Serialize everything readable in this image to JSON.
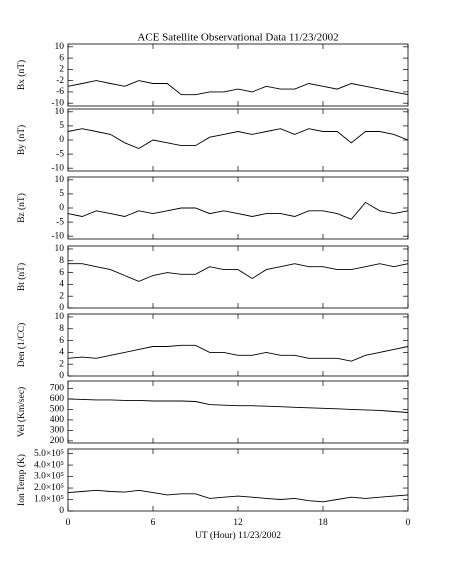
{
  "chart_data": [
    {
      "type": "line",
      "title": "ACE Satellite Observational Data   11/23/2002",
      "ylabel": "Bx (nT)",
      "x": [
        0,
        1,
        2,
        3,
        4,
        5,
        6,
        7,
        8,
        9,
        10,
        11,
        12,
        13,
        14,
        15,
        16,
        17,
        18,
        19,
        20,
        21,
        22,
        23,
        24
      ],
      "values": [
        -4,
        -3,
        -2,
        -3,
        -4,
        -2,
        -3,
        -3,
        -7,
        -7,
        -6,
        -6,
        -5,
        -6,
        -4,
        -5,
        -5,
        -3,
        -4,
        -5,
        -3,
        -4,
        -5,
        -6,
        -7
      ],
      "color": "#000000",
      "ylim": [
        -11,
        11
      ],
      "yticks": [
        10,
        6,
        2,
        -2,
        -6,
        -10
      ]
    },
    {
      "type": "line",
      "ylabel": "By (nT)",
      "x": [
        0,
        1,
        2,
        3,
        4,
        5,
        6,
        7,
        8,
        9,
        10,
        11,
        12,
        13,
        14,
        15,
        16,
        17,
        18,
        19,
        20,
        21,
        22,
        23,
        24
      ],
      "values": [
        3,
        4,
        3,
        2,
        -1,
        -3,
        0,
        -1,
        -2,
        -2,
        1,
        2,
        3,
        2,
        3,
        4,
        2,
        4,
        3,
        3,
        -1,
        3,
        3,
        2,
        0
      ],
      "color": "#000000",
      "ylim": [
        -11,
        11
      ],
      "yticks": [
        10,
        5,
        0,
        -5,
        -10
      ]
    },
    {
      "type": "line",
      "ylabel": "Bz (nT)",
      "x": [
        0,
        1,
        2,
        3,
        4,
        5,
        6,
        7,
        8,
        9,
        10,
        11,
        12,
        13,
        14,
        15,
        16,
        17,
        18,
        19,
        20,
        21,
        22,
        23,
        24
      ],
      "values": [
        -2,
        -3,
        -1,
        -2,
        -3,
        -1,
        -2,
        -1,
        0,
        0,
        -2,
        -1,
        -2,
        -3,
        -2,
        -2,
        -3,
        -1,
        -1,
        -2,
        -4,
        2,
        -1,
        -2,
        -1
      ],
      "color": "#000000",
      "ylim": [
        -11,
        11
      ],
      "yticks": [
        10,
        5,
        0,
        -5,
        -10
      ]
    },
    {
      "type": "line",
      "ylabel": "Bt (nT)",
      "x": [
        0,
        1,
        2,
        3,
        4,
        5,
        6,
        7,
        8,
        9,
        10,
        11,
        12,
        13,
        14,
        15,
        16,
        17,
        18,
        19,
        20,
        21,
        22,
        23,
        24
      ],
      "values": [
        7.5,
        7.5,
        7,
        6.5,
        5.5,
        4.5,
        5.5,
        6,
        5.7,
        5.7,
        7,
        6.5,
        6.5,
        5,
        6.5,
        7,
        7.5,
        7,
        7,
        6.5,
        6.5,
        7,
        7.5,
        7,
        7.5
      ],
      "color": "#000000",
      "ylim": [
        0,
        10.5
      ],
      "yticks": [
        10,
        8,
        6,
        4,
        2,
        0
      ]
    },
    {
      "type": "line",
      "ylabel": "Den (1/CC)",
      "x": [
        0,
        1,
        2,
        3,
        4,
        5,
        6,
        7,
        8,
        9,
        10,
        11,
        12,
        13,
        14,
        15,
        16,
        17,
        18,
        19,
        20,
        21,
        22,
        23,
        24
      ],
      "values": [
        3,
        3.2,
        3,
        3.5,
        4,
        4.5,
        5,
        5,
        5.2,
        5.2,
        4,
        4,
        3.5,
        3.5,
        4,
        3.5,
        3.5,
        3,
        3,
        3,
        2.5,
        3.5,
        4,
        4.5,
        5
      ],
      "color": "#000000",
      "ylim": [
        0,
        10.5
      ],
      "yticks": [
        10,
        8,
        6,
        4,
        2,
        0
      ]
    },
    {
      "type": "line",
      "ylabel": "Vel (Km/sec)",
      "x": [
        0,
        1,
        2,
        3,
        4,
        5,
        6,
        7,
        8,
        9,
        10,
        11,
        12,
        13,
        14,
        15,
        16,
        17,
        18,
        19,
        20,
        21,
        22,
        23,
        24
      ],
      "values": [
        600,
        595,
        590,
        590,
        585,
        585,
        580,
        580,
        580,
        575,
        545,
        540,
        535,
        535,
        530,
        525,
        520,
        515,
        510,
        505,
        500,
        495,
        490,
        480,
        470
      ],
      "color": "#000000",
      "ylim": [
        180,
        770
      ],
      "yticks": [
        700,
        600,
        500,
        400,
        300,
        200
      ]
    },
    {
      "type": "line",
      "ylabel": "Ion Temp (K)",
      "xlabel": "UT (Hour)  11/23/2002",
      "x": [
        0,
        1,
        2,
        3,
        4,
        5,
        6,
        7,
        8,
        9,
        10,
        11,
        12,
        13,
        14,
        15,
        16,
        17,
        18,
        19,
        20,
        21,
        22,
        23,
        24
      ],
      "values": [
        160000,
        170000,
        180000,
        170000,
        165000,
        180000,
        160000,
        140000,
        150000,
        150000,
        110000,
        120000,
        130000,
        120000,
        110000,
        100000,
        110000,
        90000,
        80000,
        100000,
        120000,
        110000,
        120000,
        130000,
        140000
      ],
      "color": "#000000",
      "ylim": [
        0,
        540000
      ],
      "yticks": [
        {
          "value": 500000,
          "label": "5.0×10⁵"
        },
        {
          "value": 400000,
          "label": "4.0×10⁵"
        },
        {
          "value": 300000,
          "label": "3.0×10⁵"
        },
        {
          "value": 200000,
          "label": "2.0×10⁵"
        },
        {
          "value": 100000,
          "label": "1.0×10⁵"
        },
        0
      ],
      "xlim": [
        0,
        24
      ],
      "xticks": [
        0,
        6,
        12,
        18,
        {
          "value": 24,
          "label": "0"
        }
      ]
    }
  ]
}
